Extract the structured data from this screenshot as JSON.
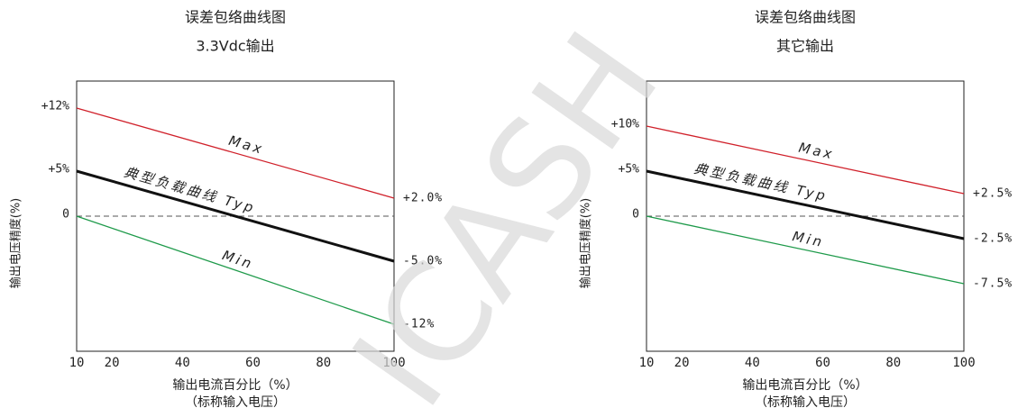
{
  "watermark": "ICASH",
  "chart_data": [
    {
      "type": "line",
      "title": "误差包络曲线图",
      "subtitle": "3.3Vdc输出",
      "xlabel": "输出电流百分比（%）",
      "xlabel_note": "（标称输入电压）",
      "ylabel": "输出电压精度(%)",
      "x": [
        10,
        100
      ],
      "series": [
        {
          "name": "Max",
          "color": "#d0202a",
          "values": [
            12,
            2
          ]
        },
        {
          "name": "典型负载曲线 Typ",
          "color": "#111111",
          "values": [
            5,
            -5
          ]
        },
        {
          "name": "Min",
          "color": "#1e9a4a",
          "values": [
            0,
            -12
          ]
        }
      ],
      "xlim": [
        10,
        100
      ],
      "xticks": [
        10,
        20,
        40,
        60,
        80,
        100
      ],
      "ylim": [
        -15,
        15
      ],
      "yticks": [
        {
          "value": 12,
          "label": "+12%"
        },
        {
          "value": 5,
          "label": "+5%"
        },
        0
      ],
      "y2lim": [
        -15,
        15
      ],
      "y2ticks": [
        {
          "value": 2,
          "label": "+2.0%"
        },
        {
          "value": -5,
          "label": "-5.0%"
        },
        {
          "value": -12,
          "label": "-12%"
        }
      ],
      "hline": 0
    },
    {
      "type": "line",
      "title": "误差包络曲线图",
      "subtitle": "其它输出",
      "xlabel": "输出电流百分比（%）",
      "xlabel_note": "（标称输入电压）",
      "ylabel": "输出电压精度(%)",
      "x": [
        10,
        100
      ],
      "series": [
        {
          "name": "Max",
          "color": "#d0202a",
          "values": [
            10,
            2.5
          ]
        },
        {
          "name": "典型负载曲线 Typ",
          "color": "#111111",
          "values": [
            5,
            -2.5
          ]
        },
        {
          "name": "Min",
          "color": "#1e9a4a",
          "values": [
            0,
            -7.5
          ]
        }
      ],
      "xlim": [
        10,
        100
      ],
      "xticks": [
        10,
        20,
        40,
        60,
        80,
        100
      ],
      "ylim": [
        -15,
        15
      ],
      "yticks": [
        {
          "value": 10,
          "label": "+10%"
        },
        {
          "value": 5,
          "label": "+5%"
        },
        0
      ],
      "y2lim": [
        -15,
        15
      ],
      "y2ticks": [
        {
          "value": 2.5,
          "label": "+2.5%"
        },
        {
          "value": -2.5,
          "label": "-2.5%"
        },
        {
          "value": -7.5,
          "label": "-7.5%"
        }
      ],
      "hline": 0
    }
  ]
}
